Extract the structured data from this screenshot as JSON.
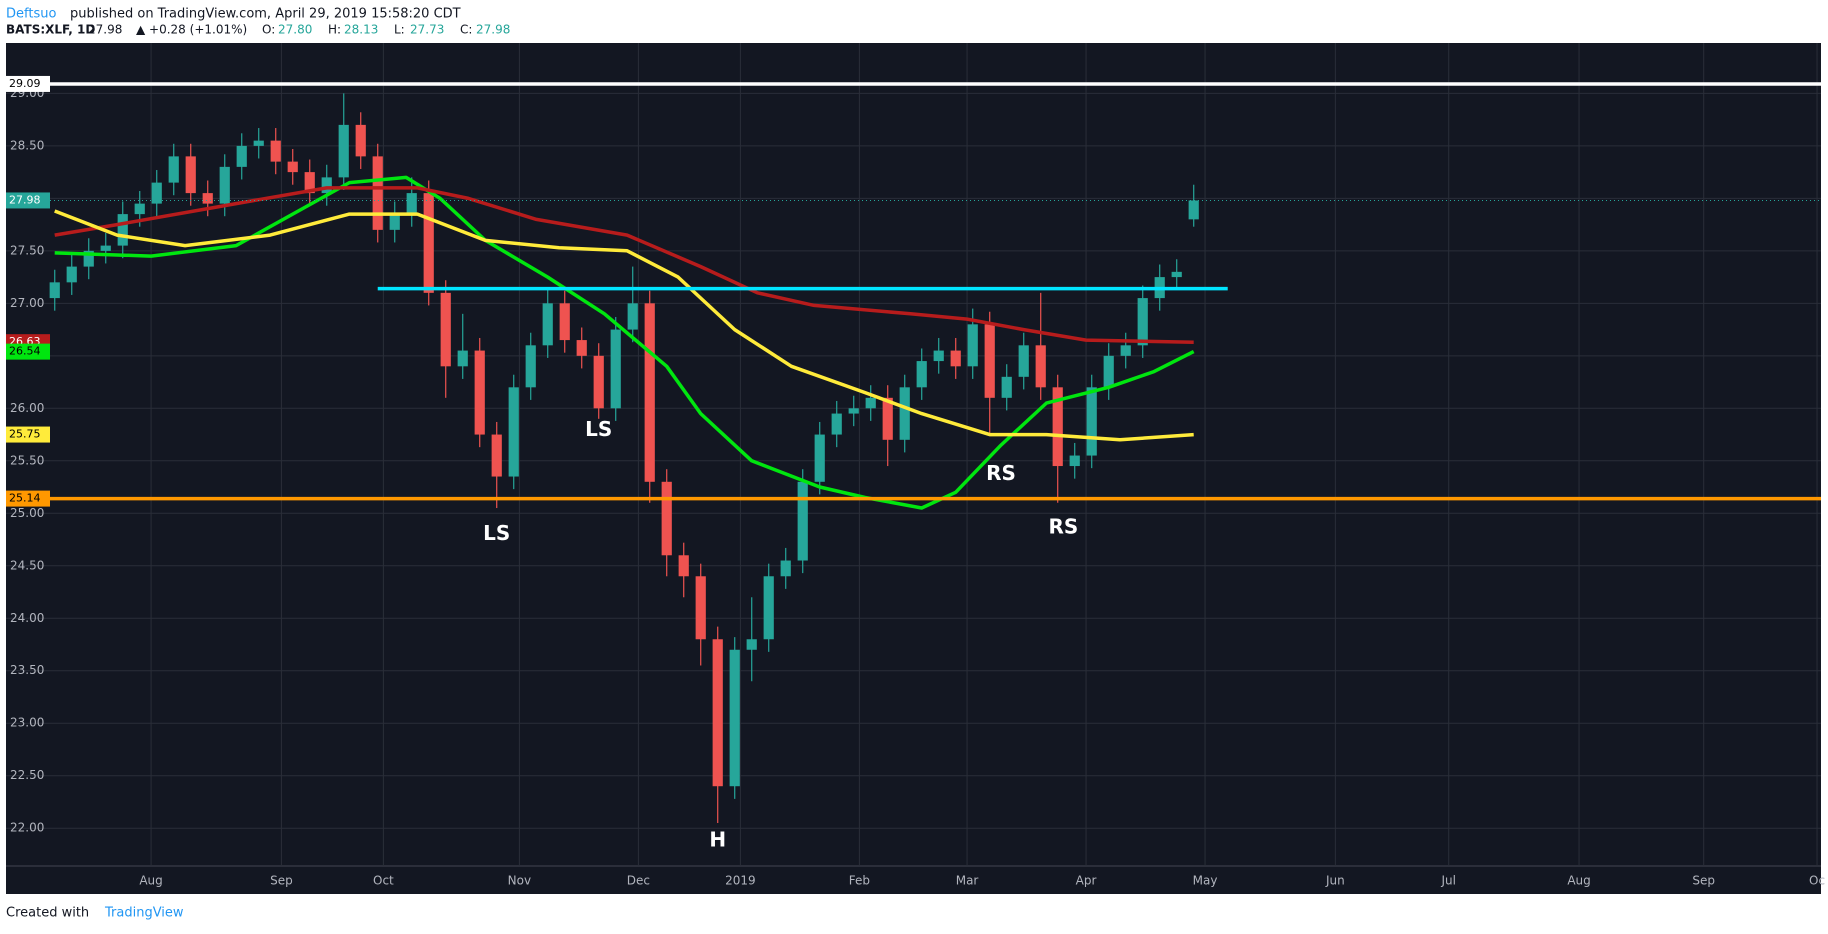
{
  "header": {
    "author": "Deftsuo",
    "published": "published on TradingView.com, April 29, 2019 15:58:20 CDT",
    "symbol": "BATS:XLF, 1D",
    "last": "27.98",
    "change": "▲ +0.28 (+1.01%)",
    "ohlc": [
      {
        "key": "O:",
        "value": "27.80"
      },
      {
        "key": "H:",
        "value": "28.13"
      },
      {
        "key": "L:",
        "value": "27.73"
      },
      {
        "key": "C:",
        "value": "27.98"
      }
    ]
  },
  "footer": {
    "created": "Created with",
    "brand": "TradingView"
  },
  "chart_data": {
    "type": "candlestick",
    "up_color": "#26a69a",
    "down_color": "#ef5350",
    "grid": true,
    "x": [
      0,
      3,
      6,
      9,
      12,
      15,
      18,
      21,
      24,
      27,
      30,
      33,
      36,
      39,
      42,
      45,
      48,
      51,
      54,
      57,
      60,
      63,
      66,
      69,
      72,
      75,
      78,
      81,
      84,
      87,
      90,
      93,
      96,
      99,
      102,
      105,
      108,
      111,
      114,
      117,
      120,
      123,
      126,
      129,
      132,
      135,
      138,
      141,
      144,
      147,
      150,
      153,
      156,
      159,
      162,
      165,
      168,
      171,
      174,
      177,
      180,
      183,
      186,
      189,
      192,
      195,
      198,
      201
    ],
    "open": [
      27.05,
      27.2,
      27.35,
      27.5,
      27.55,
      27.85,
      27.95,
      28.15,
      28.4,
      28.05,
      27.95,
      28.3,
      28.5,
      28.55,
      28.35,
      28.25,
      28.05,
      28.2,
      28.7,
      28.4,
      27.7,
      27.85,
      28.05,
      27.1,
      26.4,
      26.55,
      25.75,
      25.35,
      26.2,
      26.6,
      27.0,
      26.65,
      26.5,
      26.0,
      26.75,
      27.0,
      25.3,
      24.6,
      24.4,
      23.8,
      22.4,
      23.7,
      23.8,
      24.4,
      24.55,
      25.3,
      25.75,
      25.95,
      26.0,
      26.1,
      25.7,
      26.2,
      26.45,
      26.55,
      26.4,
      26.8,
      26.1,
      26.3,
      26.6,
      26.2,
      25.45,
      25.55,
      26.2,
      26.5,
      26.6,
      27.05,
      27.25,
      27.8
    ],
    "high": [
      27.32,
      27.47,
      27.62,
      27.67,
      27.97,
      28.07,
      28.27,
      28.52,
      28.52,
      28.17,
      28.42,
      28.62,
      28.67,
      28.67,
      28.47,
      28.37,
      28.32,
      29.0,
      28.82,
      28.52,
      27.97,
      28.2,
      28.17,
      27.22,
      26.9,
      26.67,
      25.87,
      26.32,
      26.72,
      27.15,
      27.12,
      26.77,
      26.62,
      26.87,
      27.35,
      27.12,
      25.42,
      24.72,
      24.52,
      23.92,
      23.82,
      24.2,
      24.52,
      24.67,
      25.42,
      25.87,
      26.07,
      26.12,
      26.22,
      26.22,
      26.32,
      26.57,
      26.67,
      26.67,
      26.95,
      26.92,
      26.42,
      26.72,
      27.1,
      26.32,
      25.67,
      26.32,
      26.62,
      26.72,
      27.17,
      27.37,
      27.42,
      28.13
    ],
    "low": [
      26.93,
      27.08,
      27.23,
      27.38,
      27.43,
      27.73,
      27.83,
      28.03,
      27.93,
      27.83,
      27.83,
      28.18,
      28.38,
      28.23,
      28.13,
      27.93,
      27.93,
      28.08,
      28.28,
      27.58,
      27.58,
      27.73,
      26.98,
      26.1,
      26.28,
      25.63,
      25.05,
      25.23,
      26.08,
      26.48,
      26.53,
      26.38,
      25.9,
      25.88,
      26.63,
      25.1,
      24.4,
      24.2,
      23.55,
      22.05,
      22.28,
      23.4,
      23.68,
      24.28,
      24.43,
      25.18,
      25.63,
      25.83,
      25.88,
      25.45,
      25.58,
      26.08,
      26.33,
      26.28,
      26.28,
      25.75,
      25.98,
      26.18,
      26.08,
      25.1,
      25.33,
      25.43,
      26.08,
      26.38,
      26.48,
      26.93,
      27.13,
      27.73
    ],
    "close": [
      27.2,
      27.35,
      27.5,
      27.55,
      27.85,
      27.95,
      28.15,
      28.4,
      28.05,
      27.95,
      28.3,
      28.5,
      28.55,
      28.35,
      28.25,
      28.05,
      28.2,
      28.7,
      28.4,
      27.7,
      27.85,
      28.05,
      27.1,
      26.4,
      26.55,
      25.75,
      25.35,
      26.2,
      26.6,
      27.0,
      26.65,
      26.5,
      26.0,
      26.75,
      27.0,
      25.3,
      24.6,
      24.4,
      23.8,
      22.4,
      23.7,
      23.8,
      24.4,
      24.55,
      25.3,
      25.75,
      25.95,
      26.0,
      26.1,
      25.7,
      26.2,
      26.45,
      26.55,
      26.4,
      26.8,
      26.1,
      26.3,
      26.6,
      26.2,
      25.45,
      25.55,
      26.2,
      26.5,
      26.6,
      27.05,
      27.25,
      27.3,
      27.98
    ],
    "series": [
      {
        "color": "#00e60f",
        "x": [
          0,
          17,
          32,
          42,
          52,
          62,
          68,
          76,
          87,
          97,
          108,
          114,
          123,
          135,
          143,
          153,
          159,
          167,
          175,
          186,
          194,
          201
        ],
        "values": [
          27.48,
          27.45,
          27.55,
          27.85,
          28.15,
          28.2,
          28.0,
          27.6,
          27.25,
          26.9,
          26.4,
          25.95,
          25.5,
          25.25,
          25.15,
          25.05,
          25.2,
          25.65,
          26.05,
          26.2,
          26.35,
          26.54
        ]
      },
      {
        "color": "#b71c1c",
        "x": [
          0,
          11,
          32,
          48,
          64,
          73,
          85,
          101,
          114,
          124,
          134,
          151,
          161,
          171,
          182,
          201
        ],
        "values": [
          27.65,
          27.75,
          27.95,
          28.1,
          28.1,
          28.0,
          27.8,
          27.65,
          27.35,
          27.1,
          26.98,
          26.9,
          26.85,
          26.75,
          26.65,
          26.63
        ]
      },
      {
        "color": "#ffeb3b",
        "x": [
          0,
          11,
          23,
          38,
          52,
          64,
          76,
          89,
          101,
          110,
          120,
          130,
          143,
          153,
          165,
          175,
          188,
          201
        ],
        "values": [
          27.88,
          27.65,
          27.55,
          27.65,
          27.85,
          27.85,
          27.6,
          27.53,
          27.5,
          27.25,
          26.75,
          26.4,
          26.15,
          25.95,
          25.75,
          25.75,
          25.7,
          25.75
        ]
      }
    ],
    "hlines": [
      {
        "value": 29.09,
        "color": "#ffffff"
      },
      {
        "value": 25.14,
        "color": "#ff9800"
      },
      {
        "value": 27.14,
        "color": "#00e5ff",
        "x": [
          57,
          207
        ]
      }
    ],
    "last_price_line": {
      "value": 27.98,
      "color": "#26a69a"
    },
    "price_labels": [
      {
        "value": 29.09,
        "label": "29.09",
        "color": "#ffffff",
        "text_color": "#000000"
      },
      {
        "value": 27.98,
        "label": "27.98",
        "color": "#26a69a",
        "text_color": "#ffffff"
      },
      {
        "value": 26.63,
        "label": "26.63",
        "color": "#b71c1c",
        "text_color": "#ffffff"
      },
      {
        "value": 26.54,
        "label": "26.54",
        "color": "#00e60f",
        "text_color": "#000000"
      },
      {
        "value": 25.75,
        "label": "25.75",
        "color": "#ffeb3b",
        "text_color": "#000000"
      },
      {
        "value": 25.14,
        "label": "25.14",
        "color": "#ff9800",
        "text_color": "#000000"
      }
    ],
    "annotations": [
      {
        "text": "LS",
        "x": 78,
        "y": 24.8
      },
      {
        "text": "LS",
        "x": 96,
        "y": 25.79
      },
      {
        "text": "H",
        "x": 117,
        "y": 21.88
      },
      {
        "text": "RS",
        "x": 167,
        "y": 25.37
      },
      {
        "text": "RS",
        "x": 178,
        "y": 24.86
      }
    ],
    "xlim": [
      -8.6,
      311.7
    ],
    "ylim": [
      21.64,
      29.48
    ],
    "xticks": [
      {
        "value": 17,
        "label": "Aug"
      },
      {
        "value": 40,
        "label": "Sep"
      },
      {
        "value": 58,
        "label": "Oct"
      },
      {
        "value": 82,
        "label": "Nov"
      },
      {
        "value": 103,
        "label": "Dec"
      },
      {
        "value": 121,
        "label": "2019"
      },
      {
        "value": 142,
        "label": "Feb"
      },
      {
        "value": 161,
        "label": "Mar"
      },
      {
        "value": 182,
        "label": "Apr"
      },
      {
        "value": 203,
        "label": "May"
      },
      {
        "value": 226,
        "label": "Jun"
      },
      {
        "value": 246,
        "label": "Jul"
      },
      {
        "value": 269,
        "label": "Aug"
      },
      {
        "value": 291,
        "label": "Sep"
      },
      {
        "value": 311,
        "label": "Oc"
      }
    ],
    "yticks": [
      {
        "value": 22,
        "label": "22.00"
      },
      {
        "value": 22.5,
        "label": "22.50"
      },
      {
        "value": 23,
        "label": "23.00"
      },
      {
        "value": 23.5,
        "label": "23.50"
      },
      {
        "value": 24,
        "label": "24.00"
      },
      {
        "value": 24.5,
        "label": "24.50"
      },
      {
        "value": 25,
        "label": "25.00"
      },
      {
        "value": 25.5,
        "label": "25.50"
      },
      {
        "value": 26,
        "label": "26.00"
      },
      {
        "value": 26.5,
        "label": "26.50"
      },
      {
        "value": 27,
        "label": "27.00"
      },
      {
        "value": 27.5,
        "label": "27.50"
      },
      {
        "value": 28,
        "label": "28.00"
      },
      {
        "value": 28.5,
        "label": "28.50"
      },
      {
        "value": 29,
        "label": "29.00"
      }
    ]
  }
}
